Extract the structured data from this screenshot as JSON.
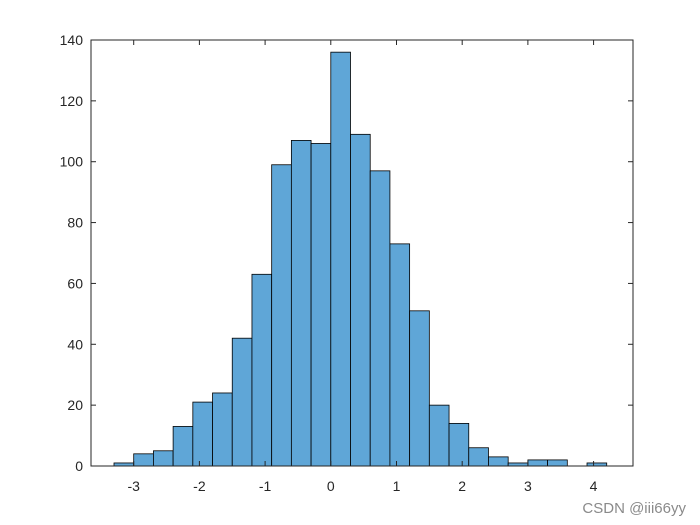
{
  "chart_data": {
    "type": "bar",
    "subtype": "histogram",
    "title": "",
    "xlabel": "",
    "ylabel": "",
    "bin_width": 0.3,
    "bin_edges": [
      -3.3,
      -3.0,
      -2.7,
      -2.4,
      -2.1,
      -1.8,
      -1.5,
      -1.2,
      -0.9,
      -0.6,
      -0.3,
      0.0,
      0.3,
      0.6,
      0.9,
      1.2,
      1.5,
      1.8,
      2.1,
      2.4,
      2.7,
      3.0,
      3.3,
      3.6,
      3.9,
      4.2
    ],
    "values": [
      1,
      4,
      5,
      13,
      21,
      24,
      42,
      63,
      99,
      107,
      106,
      136,
      109,
      97,
      73,
      51,
      20,
      14,
      6,
      3,
      1,
      2,
      2,
      0,
      1
    ],
    "xlim": [
      -3.65,
      4.6
    ],
    "ylim": [
      0,
      140
    ],
    "xticks": [
      -3,
      -2,
      -1,
      0,
      1,
      2,
      3,
      4
    ],
    "xtick_labels": [
      "-3",
      "-2",
      "-1",
      "0",
      "1",
      "2",
      "3",
      "4"
    ],
    "yticks": [
      0,
      20,
      40,
      60,
      80,
      100,
      120,
      140
    ],
    "ytick_labels": [
      "0",
      "20",
      "40",
      "60",
      "80",
      "100",
      "120",
      "140"
    ],
    "grid": false,
    "legend": "none",
    "colors": {
      "bar_fill": "#5fa6d7",
      "bar_edge": "#000000",
      "axes": "#262626"
    }
  },
  "watermark": "CSDN @iii66yy"
}
